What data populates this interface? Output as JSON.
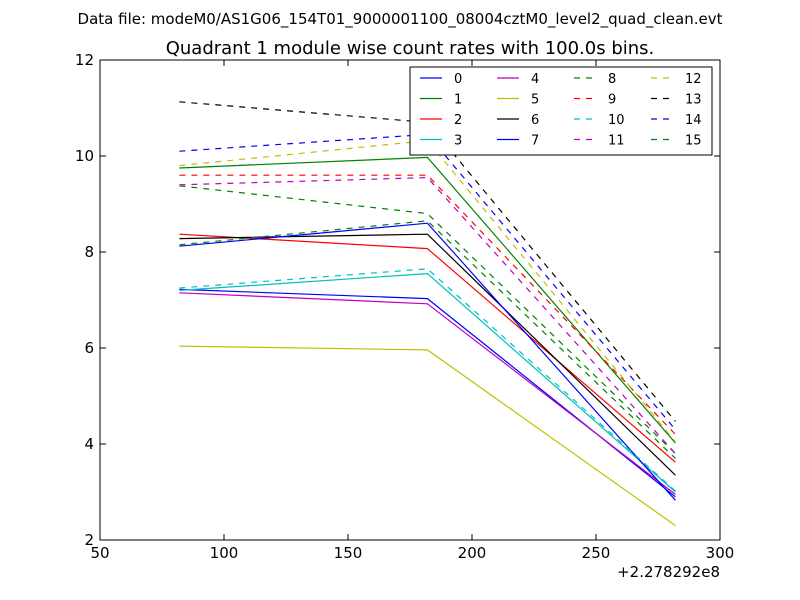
{
  "chart_data": {
    "type": "line",
    "suptitle": "Data file: modeM0/AS1G06_154T01_9000001100_08004cztM0_level2_quad_clean.evt",
    "title": "Quadrant 1 module wise count rates with 100.0s bins.",
    "xlabel": "",
    "ylabel": "",
    "x_offset_label": "+2.278292e8",
    "xlim": [
      50,
      300
    ],
    "ylim": [
      2,
      12
    ],
    "x_ticks": [
      50,
      100,
      150,
      200,
      250,
      300
    ],
    "y_ticks": [
      2,
      4,
      6,
      8,
      10,
      12
    ],
    "x": [
      82,
      182,
      282
    ],
    "legend_position": "top-right",
    "legend_columns": 4,
    "series": [
      {
        "name": "0",
        "color": "#0000ff",
        "style": "solid",
        "values": [
          7.22,
          7.03,
          2.9
        ]
      },
      {
        "name": "1",
        "color": "#008000",
        "style": "solid",
        "values": [
          9.75,
          9.97,
          4.02
        ]
      },
      {
        "name": "2",
        "color": "#ff0000",
        "style": "solid",
        "values": [
          8.37,
          8.07,
          3.62
        ]
      },
      {
        "name": "3",
        "color": "#00bfbf",
        "style": "solid",
        "values": [
          7.2,
          7.55,
          3.0
        ]
      },
      {
        "name": "4",
        "color": "#bf00bf",
        "style": "solid",
        "values": [
          7.15,
          6.92,
          2.95
        ]
      },
      {
        "name": "5",
        "color": "#bfbf00",
        "style": "solid",
        "values": [
          6.04,
          5.96,
          2.3
        ]
      },
      {
        "name": "6",
        "color": "#000000",
        "style": "solid",
        "values": [
          8.28,
          8.37,
          3.35
        ]
      },
      {
        "name": "7",
        "color": "#0000ff",
        "style": "solid",
        "values": [
          8.12,
          8.6,
          2.83
        ]
      },
      {
        "name": "8",
        "color": "#008000",
        "style": "dashed",
        "values": [
          9.38,
          8.8,
          3.8
        ]
      },
      {
        "name": "9",
        "color": "#ff0000",
        "style": "dashed",
        "values": [
          9.6,
          9.6,
          4.2
        ]
      },
      {
        "name": "10",
        "color": "#00bfbf",
        "style": "dashed",
        "values": [
          7.25,
          7.65,
          3.02
        ]
      },
      {
        "name": "11",
        "color": "#bf00bf",
        "style": "dashed",
        "values": [
          9.4,
          9.55,
          3.8
        ]
      },
      {
        "name": "12",
        "color": "#bfbf00",
        "style": "dashed",
        "values": [
          9.8,
          10.32,
          4.05
        ]
      },
      {
        "name": "13",
        "color": "#000000",
        "style": "dashed",
        "values": [
          11.13,
          10.7,
          4.47
        ]
      },
      {
        "name": "14",
        "color": "#0000ff",
        "style": "dashed",
        "values": [
          10.1,
          10.45,
          4.3
        ]
      },
      {
        "name": "15",
        "color": "#008000",
        "style": "dashed",
        "values": [
          8.15,
          8.65,
          3.7
        ]
      }
    ]
  }
}
